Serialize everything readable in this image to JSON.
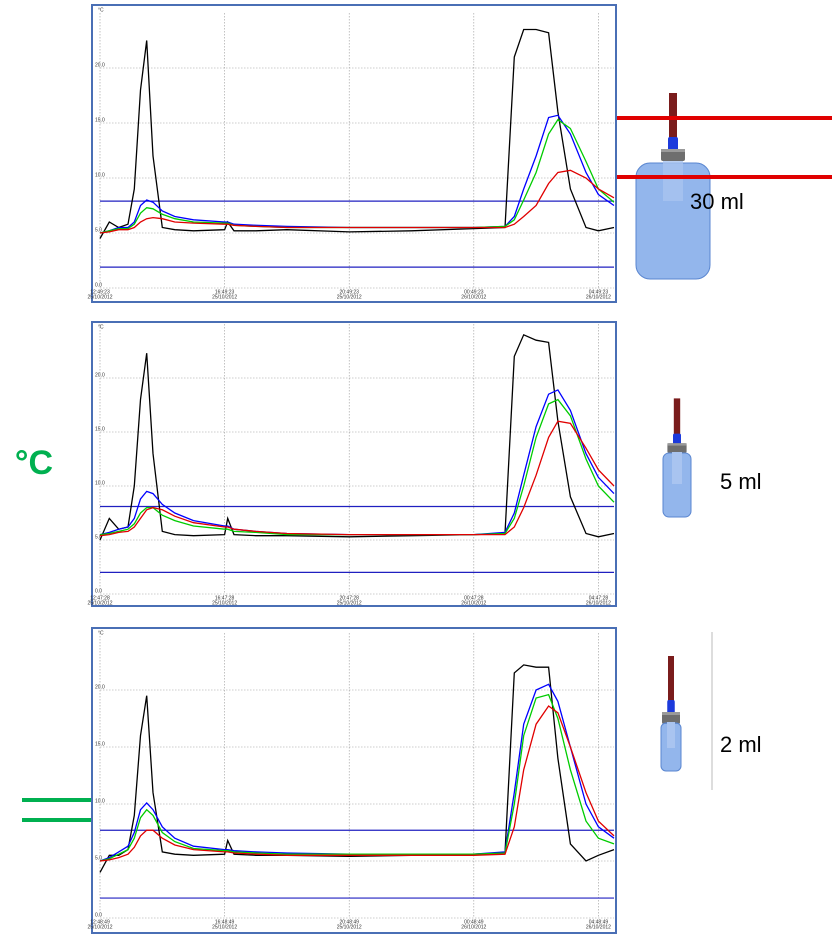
{
  "axis_label": "°C",
  "chart_data": [
    {
      "type": "line",
      "y_label": "°C",
      "volume_label": "30 ml",
      "x": [
        0,
        0.3,
        0.6,
        0.9,
        1.1,
        1.3,
        1.5,
        1.7,
        2,
        2.4,
        3,
        4,
        4.1,
        4.3,
        5,
        6,
        8,
        10,
        12,
        13,
        13.3,
        13.6,
        14,
        14.4,
        14.7,
        15.1,
        15.6,
        16,
        16.5
      ],
      "xlim": [
        0,
        16.5
      ],
      "xticks": [
        {
          "value": 0,
          "label": [
            "12:49:23",
            "25/10/2012"
          ]
        },
        {
          "value": 4,
          "label": [
            "16:49:23",
            "25/10/2012"
          ]
        },
        {
          "value": 8,
          "label": [
            "20:49:23",
            "25/10/2012"
          ]
        },
        {
          "value": 12,
          "label": [
            "00:49:23",
            "26/10/2012"
          ]
        },
        {
          "value": 16,
          "label": [
            "04:49:23",
            "26/10/2012"
          ]
        }
      ],
      "ylim": [
        0,
        25
      ],
      "yticks": [
        {
          "value": 0,
          "label": "0.0"
        },
        {
          "value": 5,
          "label": "5.0"
        },
        {
          "value": 10,
          "label": "10.0"
        },
        {
          "value": 15,
          "label": "15.0"
        },
        {
          "value": 20,
          "label": "20.0"
        }
      ],
      "reference_lines": [
        7.9,
        1.9
      ],
      "reference_color": "#2020c0",
      "series": [
        {
          "color": "#000000",
          "values": [
            4.5,
            6,
            5.5,
            5.8,
            9,
            18,
            22.5,
            12,
            5.5,
            5.3,
            5.2,
            5.3,
            6,
            5.2,
            5.2,
            5.3,
            5.1,
            5.2,
            5.4,
            5.5,
            21,
            23.5,
            23.5,
            23.2,
            16,
            9,
            5.5,
            5.2,
            5.5
          ]
        },
        {
          "color": "#0000ff",
          "values": [
            5,
            5.2,
            5.5,
            5.5,
            6,
            7.5,
            8,
            7.8,
            7,
            6.5,
            6.2,
            6,
            6,
            5.8,
            5.7,
            5.6,
            5.5,
            5.5,
            5.5,
            5.6,
            6.5,
            9,
            12,
            15.5,
            15.7,
            14,
            10.5,
            8.5,
            7.5
          ]
        },
        {
          "color": "#00cc00",
          "values": [
            5,
            5.2,
            5.4,
            5.4,
            5.8,
            6.8,
            7.3,
            7.2,
            6.7,
            6.3,
            6,
            5.9,
            5.9,
            5.7,
            5.6,
            5.5,
            5.5,
            5.5,
            5.5,
            5.6,
            6.2,
            8,
            10.5,
            14,
            15.3,
            14.5,
            11.5,
            9,
            7.8
          ]
        },
        {
          "color": "#e00000",
          "values": [
            5,
            5.1,
            5.3,
            5.3,
            5.5,
            6,
            6.3,
            6.4,
            6.3,
            6,
            5.9,
            5.8,
            5.8,
            5.7,
            5.6,
            5.5,
            5.5,
            5.5,
            5.5,
            5.5,
            5.8,
            6.5,
            7.5,
            9.5,
            10.5,
            10.7,
            10,
            9,
            8.2
          ]
        }
      ]
    },
    {
      "type": "line",
      "y_label": "°C",
      "volume_label": "5 ml",
      "x": [
        0,
        0.3,
        0.6,
        0.9,
        1.1,
        1.3,
        1.5,
        1.7,
        2,
        2.4,
        3,
        4,
        4.1,
        4.3,
        5,
        6,
        8,
        10,
        12,
        13,
        13.3,
        13.6,
        14,
        14.4,
        14.7,
        15.1,
        15.6,
        16,
        16.5
      ],
      "xlim": [
        0,
        16.5
      ],
      "xticks": [
        {
          "value": 0,
          "label": [
            "12:47:28",
            "25/10/2012"
          ]
        },
        {
          "value": 4,
          "label": [
            "16:47:28",
            "25/10/2012"
          ]
        },
        {
          "value": 8,
          "label": [
            "20:47:28",
            "25/10/2012"
          ]
        },
        {
          "value": 12,
          "label": [
            "00:47:28",
            "26/10/2012"
          ]
        },
        {
          "value": 16,
          "label": [
            "04:47:28",
            "26/10/2012"
          ]
        }
      ],
      "ylim": [
        0,
        25
      ],
      "yticks": [
        {
          "value": 0,
          "label": "0.0"
        },
        {
          "value": 5,
          "label": "5.0"
        },
        {
          "value": 10,
          "label": "10.0"
        },
        {
          "value": 15,
          "label": "15.0"
        },
        {
          "value": 20,
          "label": "20.0"
        }
      ],
      "reference_lines": [
        8.1,
        2.0
      ],
      "reference_color": "#2020c0",
      "series": [
        {
          "color": "#000000",
          "values": [
            5,
            7,
            6,
            6.2,
            10,
            18,
            22.3,
            13,
            5.8,
            5.5,
            5.4,
            5.5,
            7,
            5.5,
            5.4,
            5.4,
            5.3,
            5.4,
            5.5,
            5.6,
            22,
            24,
            23.5,
            23.3,
            16,
            9,
            5.6,
            5.3,
            5.6
          ]
        },
        {
          "color": "#0000ff",
          "values": [
            5.5,
            5.7,
            6,
            6.2,
            7,
            8.8,
            9.5,
            9.3,
            8.3,
            7.5,
            6.8,
            6.3,
            6.3,
            6,
            5.8,
            5.6,
            5.5,
            5.5,
            5.5,
            5.7,
            7.5,
            11,
            15.5,
            18.5,
            18.9,
            17,
            13,
            10.8,
            9.3
          ]
        },
        {
          "color": "#00cc00",
          "values": [
            5.5,
            5.6,
            5.8,
            6,
            6.5,
            7.5,
            8,
            8,
            7.3,
            6.8,
            6.3,
            6,
            6,
            5.8,
            5.7,
            5.5,
            5.5,
            5.5,
            5.5,
            5.6,
            7,
            10,
            14.5,
            17.6,
            18,
            16.5,
            12.5,
            10,
            8.5
          ]
        },
        {
          "color": "#e00000",
          "values": [
            5.4,
            5.5,
            5.7,
            5.8,
            6.2,
            7,
            7.8,
            8,
            7.8,
            7.2,
            6.6,
            6.2,
            6.2,
            6,
            5.8,
            5.6,
            5.5,
            5.5,
            5.5,
            5.5,
            6.2,
            8,
            11,
            14.5,
            16,
            15.8,
            13.5,
            11.5,
            10
          ]
        }
      ]
    },
    {
      "type": "line",
      "y_label": "°C",
      "volume_label": "2 ml",
      "x": [
        0,
        0.3,
        0.6,
        0.9,
        1.1,
        1.3,
        1.5,
        1.7,
        2,
        2.4,
        3,
        4,
        4.1,
        4.3,
        5,
        6,
        8,
        10,
        12,
        13,
        13.3,
        13.6,
        14,
        14.4,
        14.7,
        15.1,
        15.6,
        16,
        16.5
      ],
      "xlim": [
        0,
        16.5
      ],
      "xticks": [
        {
          "value": 0,
          "label": [
            "12:48:49",
            "25/10/2012"
          ]
        },
        {
          "value": 4,
          "label": [
            "16:48:49",
            "25/10/2012"
          ]
        },
        {
          "value": 8,
          "label": [
            "20:48:49",
            "25/10/2012"
          ]
        },
        {
          "value": 12,
          "label": [
            "00:48:49",
            "26/10/2012"
          ]
        },
        {
          "value": 16,
          "label": [
            "04:48:49",
            "26/10/2012"
          ]
        }
      ],
      "ylim": [
        0,
        25
      ],
      "yticks": [
        {
          "value": 0,
          "label": "0.0"
        },
        {
          "value": 5,
          "label": "5.0"
        },
        {
          "value": 10,
          "label": "10.0"
        },
        {
          "value": 15,
          "label": "15.0"
        },
        {
          "value": 20,
          "label": "20.0"
        }
      ],
      "reference_lines": [
        7.7,
        1.75
      ],
      "reference_color": "#2020c0",
      "series": [
        {
          "color": "#000000",
          "values": [
            4,
            5.5,
            5.5,
            6,
            9,
            16,
            19.5,
            11,
            5.8,
            5.6,
            5.5,
            5.6,
            6.8,
            5.6,
            5.5,
            5.5,
            5.4,
            5.5,
            5.6,
            5.7,
            21.5,
            22.2,
            22,
            22,
            14,
            6.5,
            5,
            5.5,
            6
          ]
        },
        {
          "color": "#0000ff",
          "values": [
            5,
            5.3,
            5.8,
            6.3,
            7.5,
            9.5,
            10.1,
            9.5,
            8,
            7,
            6.3,
            6,
            6,
            5.9,
            5.8,
            5.7,
            5.6,
            5.6,
            5.6,
            5.8,
            11,
            17,
            20,
            20.5,
            19,
            15,
            10,
            8,
            7
          ]
        },
        {
          "color": "#00cc00",
          "values": [
            5,
            5.2,
            5.6,
            6,
            7,
            8.8,
            9.5,
            9,
            7.5,
            6.7,
            6.1,
            5.9,
            5.9,
            5.8,
            5.7,
            5.6,
            5.6,
            5.6,
            5.6,
            5.7,
            10,
            16,
            19.3,
            19.6,
            17.5,
            13,
            8.5,
            7,
            6.5
          ]
        },
        {
          "color": "#e00000",
          "values": [
            5,
            5.1,
            5.3,
            5.6,
            6.2,
            7.2,
            7.7,
            7.7,
            7,
            6.4,
            6,
            5.8,
            5.8,
            5.7,
            5.6,
            5.5,
            5.5,
            5.5,
            5.5,
            5.6,
            8,
            13,
            17,
            18.6,
            18,
            15,
            11,
            8.5,
            7.2
          ]
        }
      ]
    }
  ]
}
